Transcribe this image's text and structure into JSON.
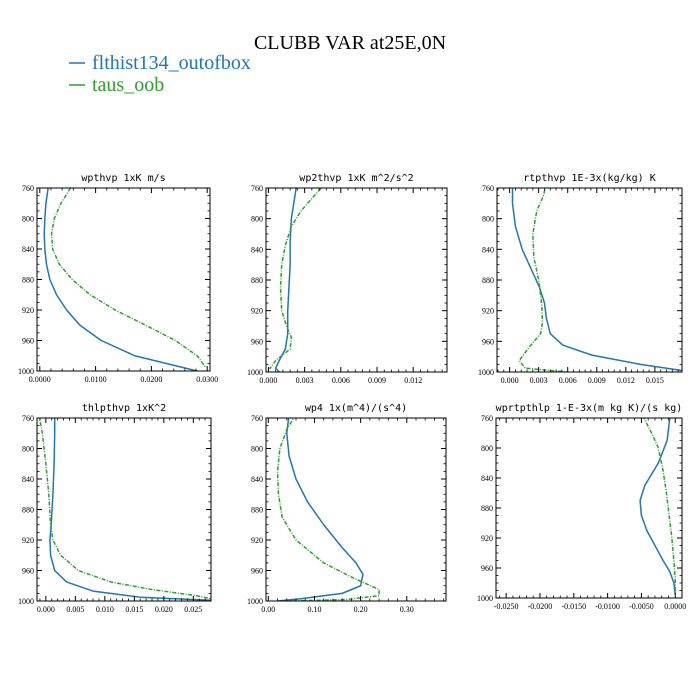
{
  "figure": {
    "title": "CLUBB VAR at25E,0N",
    "legend": [
      {
        "label": "flthist134_outofbox",
        "color": "#1f77b4",
        "dash": "solid"
      },
      {
        "label": "taus_oob",
        "color": "#2ca02c",
        "dash": "dashdot"
      }
    ]
  },
  "chart_data": [
    {
      "type": "line",
      "title": "wpthvp  1xK m/s",
      "xlim": [
        -0.0005,
        0.0305
      ],
      "ylim": [
        760,
        1000
      ],
      "y_inverted": true,
      "xticks": [
        0.0,
        0.01,
        0.02,
        0.03
      ],
      "xtick_labels": [
        "0.0000",
        "0.0100",
        "0.0200",
        "0.0300"
      ],
      "yticks": [
        760,
        800,
        840,
        880,
        920,
        960,
        1000
      ],
      "ytick_labels": [
        "760",
        "800",
        "840",
        "880",
        "920",
        "960",
        "1000"
      ],
      "series": [
        {
          "name": "flthist134_outofbox",
          "color": "#1f77b4",
          "dash": "solid",
          "points": [
            [
              0.0015,
              760
            ],
            [
              0.0011,
              780
            ],
            [
              0.0009,
              800
            ],
            [
              0.0008,
              820
            ],
            [
              0.0009,
              840
            ],
            [
              0.0012,
              860
            ],
            [
              0.0018,
              880
            ],
            [
              0.003,
              900
            ],
            [
              0.0048,
              920
            ],
            [
              0.0072,
              940
            ],
            [
              0.011,
              960
            ],
            [
              0.017,
              980
            ],
            [
              0.0282,
              1000
            ]
          ]
        },
        {
          "name": "taus_oob",
          "color": "#2ca02c",
          "dash": "dashdot",
          "points": [
            [
              0.0055,
              760
            ],
            [
              0.0038,
              780
            ],
            [
              0.0026,
              800
            ],
            [
              0.0021,
              820
            ],
            [
              0.0023,
              840
            ],
            [
              0.0035,
              860
            ],
            [
              0.0058,
              880
            ],
            [
              0.009,
              900
            ],
            [
              0.0135,
              920
            ],
            [
              0.019,
              940
            ],
            [
              0.0243,
              960
            ],
            [
              0.0282,
              980
            ],
            [
              0.0297,
              995
            ]
          ]
        }
      ]
    },
    {
      "type": "line",
      "title": "wp2thvp  1xK m^2/s^2",
      "xlim": [
        -0.0002,
        0.0148
      ],
      "ylim": [
        760,
        1000
      ],
      "y_inverted": true,
      "xticks": [
        0.0,
        0.003,
        0.006,
        0.009,
        0.012
      ],
      "xtick_labels": [
        "0.000",
        "0.003",
        "0.006",
        "0.009",
        "0.012"
      ],
      "yticks": [
        760,
        800,
        840,
        880,
        920,
        960,
        1000
      ],
      "ytick_labels": [
        "760",
        "800",
        "840",
        "880",
        "920",
        "960",
        "1000"
      ],
      "series": [
        {
          "name": "flthist134_outofbox",
          "color": "#1f77b4",
          "dash": "solid",
          "points": [
            [
              0.0023,
              760
            ],
            [
              0.0021,
              780
            ],
            [
              0.0019,
              800
            ],
            [
              0.0018,
              830
            ],
            [
              0.0018,
              860
            ],
            [
              0.0017,
              890
            ],
            [
              0.0016,
              920
            ],
            [
              0.0016,
              950
            ],
            [
              0.0014,
              970
            ],
            [
              0.0009,
              985
            ],
            [
              0.0006,
              995
            ],
            [
              0.0009,
              1000
            ]
          ]
        },
        {
          "name": "taus_oob",
          "color": "#2ca02c",
          "dash": "dashdot",
          "points": [
            [
              0.0048,
              753
            ],
            [
              0.0038,
              770
            ],
            [
              0.0027,
              790
            ],
            [
              0.0019,
              810
            ],
            [
              0.0014,
              835
            ],
            [
              0.0011,
              860
            ],
            [
              0.001,
              890
            ],
            [
              0.0011,
              920
            ],
            [
              0.0015,
              940
            ],
            [
              0.0019,
              955
            ],
            [
              0.0018,
              970
            ],
            [
              0.0006,
              985
            ],
            [
              0.0001,
              996
            ]
          ]
        }
      ]
    },
    {
      "type": "line",
      "title": "rtpthvp  1E-3x(kg/kg) K",
      "xlim": [
        -0.0013,
        0.0178
      ],
      "ylim": [
        760,
        1000
      ],
      "y_inverted": true,
      "xticks": [
        0.0,
        0.003,
        0.006,
        0.009,
        0.012,
        0.015
      ],
      "xtick_labels": [
        "0.000",
        "0.003",
        "0.006",
        "0.009",
        "0.012",
        "0.015"
      ],
      "yticks": [
        760,
        800,
        840,
        880,
        920,
        960,
        1000
      ],
      "ytick_labels": [
        "760",
        "800",
        "840",
        "880",
        "920",
        "960",
        "1000"
      ],
      "series": [
        {
          "name": "flthist134_outofbox",
          "color": "#1f77b4",
          "dash": "solid",
          "points": [
            [
              0.0003,
              752
            ],
            [
              0.0003,
              780
            ],
            [
              0.0006,
              810
            ],
            [
              0.0013,
              840
            ],
            [
              0.0022,
              865
            ],
            [
              0.0031,
              890
            ],
            [
              0.0036,
              910
            ],
            [
              0.0038,
              930
            ],
            [
              0.0042,
              950
            ],
            [
              0.0055,
              965
            ],
            [
              0.0085,
              978
            ],
            [
              0.0135,
              990
            ],
            [
              0.0178,
              998
            ]
          ]
        },
        {
          "name": "taus_oob",
          "color": "#2ca02c",
          "dash": "dashdot",
          "points": [
            [
              0.0038,
              752
            ],
            [
              0.0035,
              770
            ],
            [
              0.0028,
              790
            ],
            [
              0.0024,
              820
            ],
            [
              0.0025,
              850
            ],
            [
              0.003,
              880
            ],
            [
              0.0033,
              910
            ],
            [
              0.0034,
              935
            ],
            [
              0.0032,
              950
            ],
            [
              0.002,
              968
            ],
            [
              0.001,
              985
            ],
            [
              0.0016,
              995
            ],
            [
              0.006,
              1000
            ]
          ]
        }
      ]
    },
    {
      "type": "line",
      "title": "thlpthvp  1xK^2",
      "xlim": [
        -0.0015,
        0.028
      ],
      "ylim": [
        760,
        1000
      ],
      "y_inverted": true,
      "xticks": [
        0.0,
        0.005,
        0.01,
        0.015,
        0.02,
        0.025
      ],
      "xtick_labels": [
        "0.000",
        "0.005",
        "0.010",
        "0.015",
        "0.020",
        "0.025"
      ],
      "yticks": [
        760,
        800,
        840,
        880,
        920,
        960,
        1000
      ],
      "ytick_labels": [
        "760",
        "800",
        "840",
        "880",
        "920",
        "960",
        "1000"
      ],
      "series": [
        {
          "name": "flthist134_outofbox",
          "color": "#1f77b4",
          "dash": "solid",
          "points": [
            [
              0.0015,
              752
            ],
            [
              0.0015,
              780
            ],
            [
              0.0014,
              820
            ],
            [
              0.0012,
              860
            ],
            [
              0.0009,
              900
            ],
            [
              0.0007,
              920
            ],
            [
              0.0008,
              940
            ],
            [
              0.0015,
              960
            ],
            [
              0.0035,
              975
            ],
            [
              0.008,
              987
            ],
            [
              0.016,
              995
            ],
            [
              0.028,
              999
            ]
          ]
        },
        {
          "name": "taus_oob",
          "color": "#2ca02c",
          "dash": "dashdot",
          "points": [
            [
              -0.0012,
              755
            ],
            [
              -0.0006,
              780
            ],
            [
              0.0,
              820
            ],
            [
              0.0005,
              860
            ],
            [
              0.0008,
              900
            ],
            [
              0.0012,
              920
            ],
            [
              0.0025,
              940
            ],
            [
              0.0055,
              960
            ],
            [
              0.011,
              975
            ],
            [
              0.018,
              985
            ],
            [
              0.0255,
              993
            ],
            [
              0.028,
              997
            ]
          ]
        }
      ]
    },
    {
      "type": "line",
      "title": "wp4  1x(m^4)/(s^4)",
      "xlim": [
        -0.005,
        0.385
      ],
      "ylim": [
        760,
        1000
      ],
      "y_inverted": true,
      "xticks": [
        0.0,
        0.1,
        0.2,
        0.3
      ],
      "xtick_labels": [
        "0.00",
        "0.10",
        "0.20",
        "0.30"
      ],
      "yticks": [
        760,
        800,
        840,
        880,
        920,
        960,
        1000
      ],
      "ytick_labels": [
        "760",
        "800",
        "840",
        "880",
        "920",
        "960",
        "1000"
      ],
      "series": [
        {
          "name": "flthist134_outofbox",
          "color": "#1f77b4",
          "dash": "solid",
          "points": [
            [
              0.045,
              755
            ],
            [
              0.04,
              780
            ],
            [
              0.045,
              810
            ],
            [
              0.06,
              840
            ],
            [
              0.085,
              870
            ],
            [
              0.12,
              900
            ],
            [
              0.16,
              930
            ],
            [
              0.19,
              950
            ],
            [
              0.205,
              965
            ],
            [
              0.2,
              980
            ],
            [
              0.16,
              990
            ],
            [
              0.07,
              997
            ],
            [
              0.02,
              1000
            ]
          ]
        },
        {
          "name": "taus_oob",
          "color": "#2ca02c",
          "dash": "dashdot",
          "points": [
            [
              0.06,
              755
            ],
            [
              0.04,
              775
            ],
            [
              0.025,
              800
            ],
            [
              0.02,
              830
            ],
            [
              0.022,
              860
            ],
            [
              0.03,
              890
            ],
            [
              0.06,
              920
            ],
            [
              0.12,
              950
            ],
            [
              0.185,
              970
            ],
            [
              0.24,
              985
            ],
            [
              0.24,
              993
            ],
            [
              0.17,
              998
            ],
            [
              0.05,
              1000
            ]
          ]
        }
      ]
    },
    {
      "type": "line",
      "title": "wprtpthlp  1-E-3x(m kg K)/(s kg)",
      "xlim": [
        -0.0265,
        0.001
      ],
      "ylim": [
        760,
        1000
      ],
      "y_inverted": true,
      "xticks": [
        -0.025,
        -0.02,
        -0.015,
        -0.01,
        -0.005,
        0.0
      ],
      "xtick_labels": [
        "-0.0250",
        "-0.0200",
        "-0.0150",
        "-0.0100",
        "-0.0050",
        "0.0000"
      ],
      "yticks": [
        760,
        800,
        840,
        880,
        920,
        960,
        1000
      ],
      "ytick_labels": [
        "760",
        "800",
        "840",
        "880",
        "920",
        "960",
        "1000"
      ],
      "series": [
        {
          "name": "flthist134_outofbox",
          "color": "#1f77b4",
          "dash": "solid",
          "points": [
            [
              -0.0008,
              760
            ],
            [
              -0.0012,
              790
            ],
            [
              -0.0025,
              820
            ],
            [
              -0.0045,
              850
            ],
            [
              -0.0052,
              870
            ],
            [
              -0.005,
              890
            ],
            [
              -0.0042,
              910
            ],
            [
              -0.003,
              930
            ],
            [
              -0.0018,
              950
            ],
            [
              -0.0008,
              965
            ],
            [
              -0.0002,
              980
            ],
            [
              0.0,
              995
            ]
          ]
        },
        {
          "name": "taus_oob",
          "color": "#2ca02c",
          "dash": "dashdot",
          "points": [
            [
              -0.0048,
              757
            ],
            [
              -0.0035,
              780
            ],
            [
              -0.0025,
              800
            ],
            [
              -0.0018,
              830
            ],
            [
              -0.0013,
              860
            ],
            [
              -0.0009,
              890
            ],
            [
              -0.0005,
              920
            ],
            [
              -0.0002,
              950
            ],
            [
              0.0,
              975
            ],
            [
              0.0,
              995
            ]
          ]
        }
      ]
    }
  ]
}
